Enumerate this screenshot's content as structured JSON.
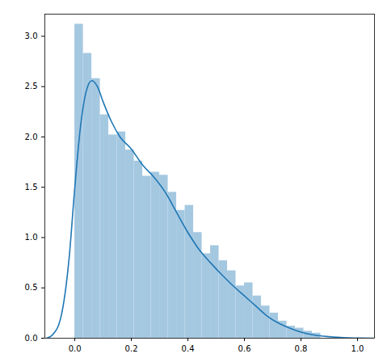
{
  "chart_data": {
    "type": "histogram",
    "bins": [
      0.0,
      0.03,
      0.06,
      0.09,
      0.12,
      0.15,
      0.18,
      0.21,
      0.24,
      0.27,
      0.3,
      0.33,
      0.36,
      0.39,
      0.42,
      0.45,
      0.48,
      0.51,
      0.54,
      0.57,
      0.6,
      0.63,
      0.66,
      0.69,
      0.72,
      0.75,
      0.78,
      0.81,
      0.84,
      0.87
    ],
    "counts": [
      3.12,
      2.83,
      2.58,
      2.22,
      2.02,
      2.05,
      1.87,
      1.76,
      1.61,
      1.65,
      1.62,
      1.45,
      1.27,
      1.32,
      1.05,
      0.84,
      0.92,
      0.77,
      0.67,
      0.52,
      0.55,
      0.42,
      0.32,
      0.25,
      0.17,
      0.12,
      0.1,
      0.07,
      0.05
    ],
    "color": "#a5c8e1",
    "kde": {
      "type": "line",
      "color": "#1f77b4",
      "x": [
        -0.1,
        -0.08,
        -0.05,
        -0.02,
        0.0,
        0.02,
        0.04,
        0.06,
        0.08,
        0.1,
        0.13,
        0.16,
        0.2,
        0.24,
        0.28,
        0.32,
        0.36,
        0.4,
        0.44,
        0.48,
        0.52,
        0.56,
        0.6,
        0.64,
        0.68,
        0.72,
        0.76,
        0.8,
        0.85,
        0.9,
        0.95,
        1.0,
        1.06
      ],
      "values": [
        0.0,
        0.03,
        0.2,
        0.8,
        1.5,
        2.1,
        2.45,
        2.56,
        2.5,
        2.35,
        2.15,
        2.0,
        1.88,
        1.72,
        1.6,
        1.45,
        1.25,
        1.05,
        0.88,
        0.75,
        0.63,
        0.52,
        0.42,
        0.32,
        0.22,
        0.15,
        0.1,
        0.06,
        0.03,
        0.015,
        0.005,
        0.002,
        0.0
      ]
    },
    "xlim": [
      -0.106,
      1.06
    ],
    "xticks": [
      {
        "value": 0.0,
        "label": "0.0"
      },
      0.2,
      0.4,
      0.6,
      0.8,
      {
        "value": 1.0,
        "label": "1.0"
      }
    ],
    "ylim": [
      0,
      3.22
    ],
    "yticks": [
      {
        "value": 0.0,
        "label": "0.0"
      },
      0.5,
      {
        "value": 1.0,
        "label": "1.0"
      },
      1.5,
      {
        "value": 2.0,
        "label": "2.0"
      },
      2.5,
      {
        "value": 3.0,
        "label": "3.0"
      }
    ],
    "grid": false
  }
}
